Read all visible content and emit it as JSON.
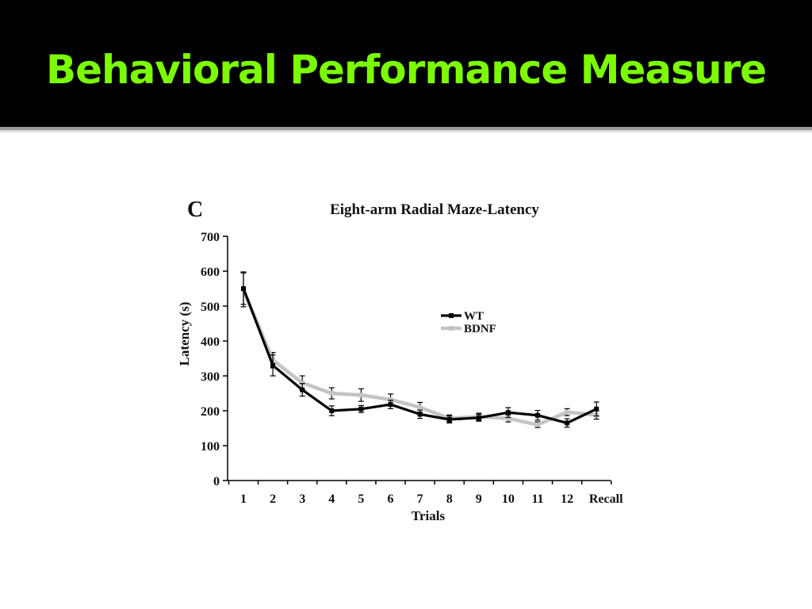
{
  "slide": {
    "title": "Behavioral Performance Measure",
    "title_color": "#7CFC00",
    "band_color": "#000000"
  },
  "chart_data": {
    "type": "line",
    "panel_letter": "C",
    "title": "Eight-arm Radial Maze-Latency",
    "xlabel": "Trials",
    "ylabel": "Latency (s)",
    "categories": [
      "1",
      "2",
      "3",
      "4",
      "5",
      "6",
      "7",
      "8",
      "9",
      "10",
      "11",
      "12",
      "Recall"
    ],
    "ylim": [
      0,
      700
    ],
    "yticks": [
      0,
      100,
      200,
      300,
      400,
      500,
      600,
      700
    ],
    "grid": false,
    "legend_position": "center-right",
    "series": [
      {
        "name": "WT",
        "color": "#000000",
        "values": [
          550,
          330,
          260,
          200,
          205,
          218,
          190,
          175,
          180,
          195,
          187,
          165,
          205
        ],
        "errors": [
          45,
          30,
          18,
          14,
          10,
          12,
          12,
          10,
          10,
          14,
          14,
          12,
          20
        ]
      },
      {
        "name": "BDNF",
        "color": "#c4c4c4",
        "values": [
          548,
          345,
          280,
          250,
          245,
          232,
          210,
          178,
          183,
          178,
          160,
          196,
          188
        ],
        "errors": [
          50,
          22,
          20,
          16,
          18,
          16,
          14,
          10,
          10,
          10,
          8,
          10,
          12
        ]
      }
    ]
  }
}
